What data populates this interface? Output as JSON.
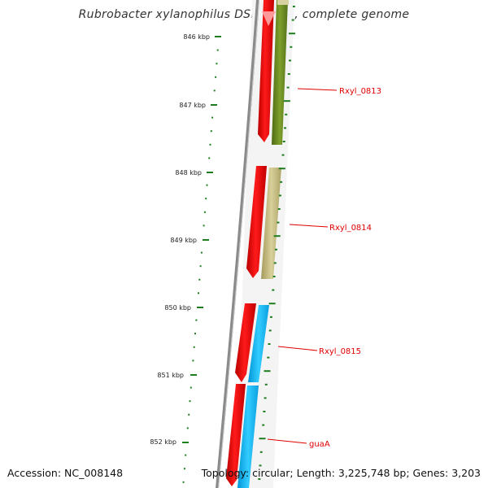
{
  "title": "Rubrobacter xylanophilus DSM 9941, complete genome",
  "footer": {
    "accession": "Accession: NC_008148",
    "summary": "Topology: circular; Length: 3,225,748 bp; Genes: 3,203"
  },
  "axis": {
    "ticks": [
      "846 kbp",
      "847 kbp",
      "848 kbp",
      "849 kbp",
      "850 kbp",
      "851 kbp",
      "852 kbp"
    ]
  },
  "genes": [
    {
      "label": "Rxyl_0813"
    },
    {
      "label": "Rxyl_0814"
    },
    {
      "label": "Rxyl_0815"
    },
    {
      "label": "guaA"
    }
  ],
  "colors": {
    "backbone": "#808080",
    "tick": "#1e7d1e",
    "forward_cds": "#ff0000",
    "gene_olive": "#6b8e23",
    "gene_khaki": "#c8bf80",
    "gene_cyan": "#00bfff",
    "gene_label": "#e00000"
  }
}
